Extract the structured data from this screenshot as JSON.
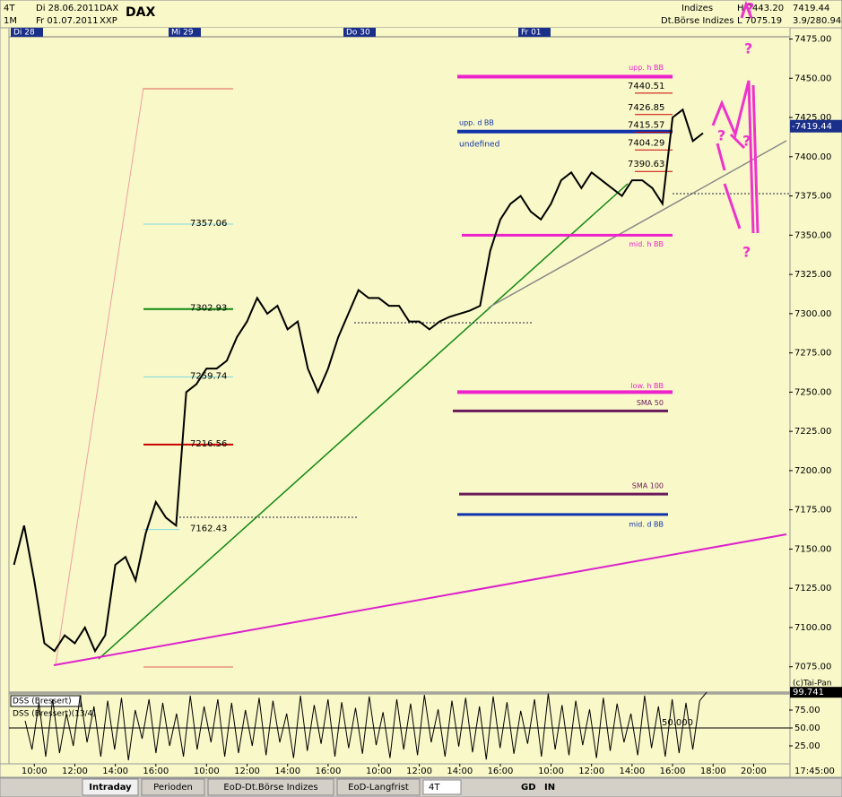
{
  "header": {
    "period": "4T",
    "start": "Di 28.06.2011",
    "symbol": "DAX",
    "range": "1M",
    "end": "Fr 01.07.2011",
    "exchange": "XXP",
    "title": "DAX",
    "group": "Indizes",
    "source": "Dt.Börse Indizes",
    "high": "H 7443.20",
    "low": "L 7075.19",
    "last": "7419.44",
    "change": "3.9/280.94"
  },
  "tabs": [
    "Intraday",
    "Perioden",
    "EoD-Dt.Börse Indizes",
    "EoD-Langfrist"
  ],
  "toolbar": {
    "period": "4T",
    "gd": "GD",
    "in": "IN"
  },
  "chart_data": [
    {
      "type": "line",
      "title": "DAX",
      "day_markers": [
        "Di 28",
        "Mi 29",
        "Do 30",
        "Fr 01"
      ],
      "categories": [
        null,
        null,
        "10:00",
        null,
        null,
        null,
        "12:00",
        null,
        null,
        null,
        "14:00",
        null,
        null,
        null,
        "16:00",
        null,
        null,
        null,
        null,
        "10:00",
        null,
        null,
        null,
        "12:00",
        null,
        null,
        null,
        "14:00",
        null,
        null,
        null,
        "16:00",
        null,
        null,
        null,
        null,
        "10:00",
        null,
        null,
        null,
        "12:00",
        null,
        null,
        null,
        "14:00",
        null,
        null,
        null,
        "16:00",
        null,
        null,
        null,
        null,
        "10:00",
        null,
        null,
        null,
        "12:00",
        null,
        null,
        null,
        "14:00",
        null,
        null,
        null,
        "16:00",
        null,
        null,
        null,
        "18:00",
        null,
        null,
        null,
        "20:00",
        null,
        null,
        null
      ],
      "series": [
        {
          "name": "DAX",
          "color": "#000000",
          "values": [
            7140,
            7165,
            7130,
            7090,
            7085,
            7095,
            7090,
            7100,
            7085,
            7095,
            7140,
            7145,
            7130,
            7160,
            7180,
            7170,
            7165,
            7250,
            7255,
            7265,
            7265,
            7270,
            7285,
            7295,
            7310,
            7300,
            7305,
            7290,
            7295,
            7265,
            7250,
            7265,
            7285,
            7300,
            7315,
            7310,
            7310,
            7305,
            7305,
            7295,
            7295,
            7290,
            7295,
            7298,
            7300,
            7302,
            7305,
            7340,
            7360,
            7370,
            7375,
            7365,
            7360,
            7370,
            7385,
            7390,
            7380,
            7390,
            7385,
            7380,
            7375,
            7385,
            7385,
            7380,
            7370,
            7425,
            7430,
            7410,
            7415,
            null,
            null,
            null,
            null,
            null,
            null,
            null,
            null
          ]
        }
      ],
      "ylim": [
        7060,
        7477
      ],
      "yticks": [
        {
          "value": 7475,
          "label": "7475.00"
        },
        {
          "value": 7450,
          "label": "7450.00"
        },
        {
          "value": 7425,
          "label": "7425.00"
        },
        {
          "value": 7400,
          "label": "7400.00"
        },
        {
          "value": 7375,
          "label": "7375.00"
        },
        {
          "value": 7350,
          "label": "7350.00"
        },
        {
          "value": 7325,
          "label": "7325.00"
        },
        {
          "value": 7300,
          "label": "7300.00"
        },
        {
          "value": 7275,
          "label": "7275.00"
        },
        {
          "value": 7250,
          "label": "7250.00"
        },
        {
          "value": 7225,
          "label": "7225.00"
        },
        {
          "value": 7200,
          "label": "7200.00"
        },
        {
          "value": 7175,
          "label": "7175.00"
        },
        {
          "value": 7150,
          "label": "7150.00"
        },
        {
          "value": 7125,
          "label": "7125.00"
        },
        {
          "value": 7100,
          "label": "7100.00"
        },
        {
          "value": 7075,
          "label": "7075.00"
        }
      ],
      "current": {
        "value": 7419.44,
        "label": "-7419.44"
      },
      "levels": [
        {
          "label": "7357.06",
          "value": 7357.06,
          "color": "#7fd8e0"
        },
        {
          "label": "7302.93",
          "value": 7302.93,
          "color": "#118811"
        },
        {
          "label": "7259.74",
          "value": 7259.74,
          "color": "#7fd8e0"
        },
        {
          "label": "7216.56",
          "value": 7216.56,
          "color": "#cc0000"
        },
        {
          "label": "7162.43",
          "value": 7162.43,
          "color": "#7fd8e0"
        },
        {
          "label": "upp. h BB",
          "value": 7451,
          "color": "#ee22cc"
        },
        {
          "label": "upp. d BB",
          "value": 7416,
          "color": "#1133aa"
        },
        {
          "label": "mid. h BB",
          "value": 7350,
          "color": "#ee22cc"
        },
        {
          "label": "low. h BB",
          "value": 7250,
          "color": "#ee22cc"
        },
        {
          "label": "SMA 50",
          "value": 7238,
          "color": "#6a1a5a"
        },
        {
          "label": "SMA 100",
          "value": 7185,
          "color": "#6a1a5a"
        },
        {
          "label": "mid. d BB",
          "value": 7172,
          "color": "#1133aa"
        },
        {
          "label": "7440.51",
          "value": 7440.51,
          "color": "#cc0000"
        },
        {
          "label": "7426.85",
          "value": 7426.85,
          "color": "#cc0000"
        },
        {
          "label": "7415.57",
          "value": 7415.57,
          "color": "#cc0000"
        },
        {
          "label": "7404.29",
          "value": 7404.29,
          "color": "#cc0000"
        },
        {
          "label": "7390.63",
          "value": 7390.63,
          "color": "#cc0000"
        }
      ],
      "note": "undefined",
      "sketch_marks": [
        "?",
        "?",
        "?",
        "?",
        "?"
      ],
      "cursor_time": "17:45:00",
      "credit": "(c)Tai-Pan"
    },
    {
      "type": "line",
      "title": "DSS (Bressert)",
      "subtitle": "DSS (Bressert)(13/4)",
      "series": [
        {
          "name": "DSS",
          "color": "#000000",
          "values": [
            60,
            20,
            85,
            10,
            90,
            15,
            70,
            25,
            95,
            30,
            80,
            10,
            88,
            20,
            92,
            5,
            75,
            35,
            90,
            15,
            85,
            25,
            70,
            10,
            95,
            20,
            80,
            30,
            90,
            10,
            85,
            15,
            75,
            25,
            92,
            12,
            88,
            30,
            70,
            8,
            95,
            18,
            82,
            28,
            90,
            10,
            86,
            22,
            78,
            14,
            94,
            26,
            72,
            8,
            90,
            20,
            84,
            12,
            96,
            30,
            76,
            10,
            88,
            24,
            92,
            16,
            80,
            6,
            94,
            22,
            86,
            14,
            74,
            28,
            90,
            10,
            98,
            20,
            82,
            12,
            88,
            26,
            76,
            8,
            92,
            18,
            84,
            30,
            70,
            12,
            95,
            22,
            80,
            10,
            90,
            15,
            85,
            20,
            88,
            99.741
          ]
        }
      ],
      "last_value": {
        "value": 99.741,
        "label": "99.741"
      },
      "reference": {
        "value": 50,
        "label": "50.000"
      },
      "ylim": [
        0,
        100
      ],
      "yticks": [
        {
          "value": 75,
          "label": "75.00"
        },
        {
          "value": 50,
          "label": "50.00"
        },
        {
          "value": 25,
          "label": "25.00"
        }
      ]
    }
  ]
}
